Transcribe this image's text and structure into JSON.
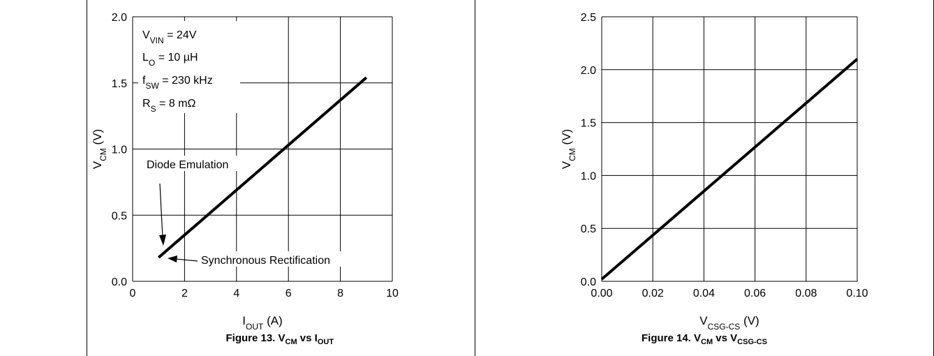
{
  "chart_data": [
    {
      "type": "line",
      "title": "Figure 13. V_CM vs I_OUT",
      "caption_parts": {
        "prefix": "Figure 13. V",
        "sub1": "CM",
        "mid": " vs I",
        "sub2": "OUT"
      },
      "xlabel": "I_OUT (A)",
      "xlabel_parts": {
        "main": "I",
        "sub": "OUT",
        "unit": " (A)"
      },
      "ylabel": "V_CM (V)",
      "ylabel_parts": {
        "main": "V",
        "sub": "CM",
        "unit": " (V)"
      },
      "xlim": [
        0,
        10
      ],
      "ylim": [
        0,
        2.0
      ],
      "xticks": [
        "0",
        "2",
        "4",
        "6",
        "8",
        "10"
      ],
      "yticks": [
        "0.0",
        "0.5",
        "1.0",
        "1.5",
        "2.0"
      ],
      "grid": true,
      "series": [
        {
          "x": [
            1,
            9
          ],
          "y": [
            0.18,
            1.54
          ]
        }
      ],
      "annotations": {
        "conditions": [
          {
            "main": "V",
            "sub": "VIN",
            "rest": " = 24V"
          },
          {
            "main": "L",
            "sub": "O",
            "rest": " = 10 µH"
          },
          {
            "main": "f",
            "sub": "SW",
            "rest": " = 230 kHz"
          },
          {
            "main": "R",
            "sub": "S",
            "rest": " = 8 mΩ"
          }
        ],
        "diode_emulation": "Diode Emulation",
        "synchronous_rectification": "Synchronous Rectification"
      }
    },
    {
      "type": "line",
      "title": "Figure 14. V_CM vs V_CSG-CS",
      "caption_parts": {
        "prefix": "Figure 14. V",
        "sub1": "CM",
        "mid": " vs V",
        "sub2": "CSG-CS"
      },
      "xlabel": "V_CSG-CS (V)",
      "xlabel_parts": {
        "main": "V",
        "sub": "CSG-CS",
        "unit": " (V)"
      },
      "ylabel": "V_CM (V)",
      "ylabel_parts": {
        "main": "V",
        "sub": "CM",
        "unit": " (V)"
      },
      "xlim": [
        0,
        0.1
      ],
      "ylim": [
        0,
        2.5
      ],
      "xticks": [
        "0.00",
        "0.02",
        "0.04",
        "0.06",
        "0.08",
        "0.10"
      ],
      "yticks": [
        "0.0",
        "0.5",
        "1.0",
        "1.5",
        "2.0",
        "2.5"
      ],
      "grid": true,
      "series": [
        {
          "x": [
            0,
            0.1
          ],
          "y": [
            0.02,
            2.1
          ]
        }
      ]
    }
  ]
}
